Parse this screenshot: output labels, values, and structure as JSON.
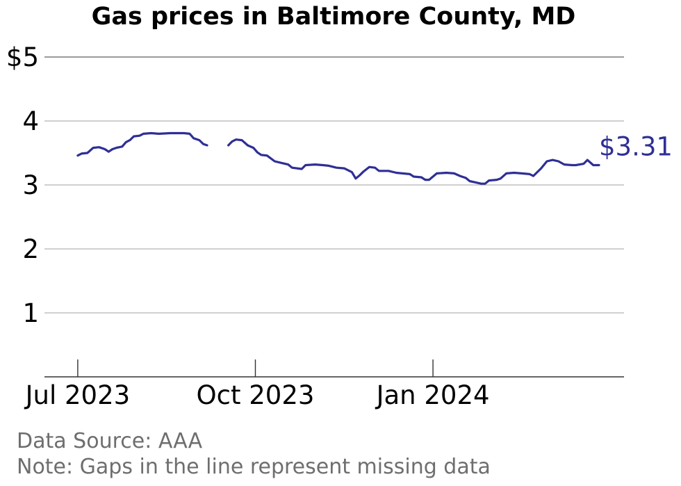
{
  "chart_data": {
    "type": "line",
    "title": "Gas prices in Baltimore County, MD",
    "xlabel": "",
    "ylabel": "",
    "x_range": [
      "2023-06-26",
      "2024-03-27"
    ],
    "ylim": [
      0,
      5
    ],
    "y_ticks": [
      {
        "value": 5,
        "label": "$5"
      },
      {
        "value": 4,
        "label": "4"
      },
      {
        "value": 3,
        "label": "3"
      },
      {
        "value": 2,
        "label": "2"
      },
      {
        "value": 1,
        "label": "1"
      }
    ],
    "x_ticks": [
      {
        "date": "2023-07-01",
        "label": "Jul 2023"
      },
      {
        "date": "2023-10-01",
        "label": "Oct 2023"
      },
      {
        "date": "2024-01-01",
        "label": "Jan 2024"
      }
    ],
    "grid": true,
    "line_color": "#2f2f96",
    "series": [
      {
        "name": "",
        "segments": [
          [
            [
              "2023-07-01",
              3.46
            ],
            [
              "2023-07-03",
              3.49
            ],
            [
              "2023-07-06",
              3.5
            ],
            [
              "2023-07-09",
              3.58
            ],
            [
              "2023-07-12",
              3.59
            ],
            [
              "2023-07-15",
              3.56
            ],
            [
              "2023-07-17",
              3.52
            ],
            [
              "2023-07-19",
              3.56
            ],
            [
              "2023-07-21",
              3.58
            ],
            [
              "2023-07-24",
              3.6
            ],
            [
              "2023-07-26",
              3.67
            ],
            [
              "2023-07-28",
              3.7
            ],
            [
              "2023-07-30",
              3.76
            ],
            [
              "2023-08-02",
              3.77
            ],
            [
              "2023-08-04",
              3.8
            ],
            [
              "2023-08-08",
              3.81
            ],
            [
              "2023-08-12",
              3.8
            ],
            [
              "2023-08-18",
              3.81
            ],
            [
              "2023-08-25",
              3.81
            ],
            [
              "2023-08-28",
              3.8
            ],
            [
              "2023-08-30",
              3.73
            ],
            [
              "2023-09-02",
              3.7
            ],
            [
              "2023-09-04",
              3.64
            ],
            [
              "2023-09-06",
              3.62
            ]
          ],
          [
            [
              "2023-09-17",
              3.62
            ],
            [
              "2023-09-19",
              3.68
            ],
            [
              "2023-09-21",
              3.71
            ],
            [
              "2023-09-24",
              3.7
            ],
            [
              "2023-09-27",
              3.62
            ],
            [
              "2023-09-30",
              3.58
            ],
            [
              "2023-10-02",
              3.51
            ],
            [
              "2023-10-04",
              3.47
            ],
            [
              "2023-10-07",
              3.46
            ],
            [
              "2023-10-11",
              3.37
            ],
            [
              "2023-10-15",
              3.34
            ],
            [
              "2023-10-18",
              3.32
            ],
            [
              "2023-10-20",
              3.27
            ],
            [
              "2023-10-25",
              3.25
            ],
            [
              "2023-10-27",
              3.31
            ],
            [
              "2023-11-01",
              3.32
            ],
            [
              "2023-11-05",
              3.31
            ],
            [
              "2023-11-08",
              3.3
            ],
            [
              "2023-11-12",
              3.27
            ],
            [
              "2023-11-16",
              3.26
            ],
            [
              "2023-11-20",
              3.2
            ],
            [
              "2023-11-22",
              3.1
            ],
            [
              "2023-11-24",
              3.15
            ],
            [
              "2023-11-26",
              3.21
            ],
            [
              "2023-11-29",
              3.28
            ],
            [
              "2023-12-02",
              3.27
            ],
            [
              "2023-12-04",
              3.22
            ],
            [
              "2023-12-09",
              3.22
            ],
            [
              "2023-12-13",
              3.19
            ],
            [
              "2023-12-20",
              3.17
            ],
            [
              "2023-12-22",
              3.13
            ],
            [
              "2023-12-26",
              3.12
            ],
            [
              "2023-12-28",
              3.08
            ],
            [
              "2023-12-30",
              3.08
            ],
            [
              "2024-01-03",
              3.18
            ],
            [
              "2024-01-08",
              3.19
            ],
            [
              "2024-01-12",
              3.18
            ],
            [
              "2024-01-15",
              3.14
            ],
            [
              "2024-01-18",
              3.11
            ],
            [
              "2024-01-20",
              3.06
            ],
            [
              "2024-01-23",
              3.04
            ],
            [
              "2024-01-26",
              3.02
            ],
            [
              "2024-01-28",
              3.02
            ],
            [
              "2024-01-30",
              3.07
            ],
            [
              "2024-02-03",
              3.08
            ],
            [
              "2024-02-05",
              3.1
            ],
            [
              "2024-02-08",
              3.18
            ],
            [
              "2024-02-12",
              3.19
            ],
            [
              "2024-02-16",
              3.18
            ],
            [
              "2024-02-20",
              3.17
            ],
            [
              "2024-02-22",
              3.14
            ],
            [
              "2024-02-24",
              3.2
            ],
            [
              "2024-02-26",
              3.26
            ],
            [
              "2024-02-29",
              3.37
            ],
            [
              "2024-03-03",
              3.39
            ],
            [
              "2024-03-06",
              3.37
            ],
            [
              "2024-03-09",
              3.32
            ],
            [
              "2024-03-13",
              3.31
            ],
            [
              "2024-03-15",
              3.31
            ],
            [
              "2024-03-19",
              3.33
            ],
            [
              "2024-03-21",
              3.39
            ],
            [
              "2024-03-24",
              3.31
            ],
            [
              "2024-03-27",
              3.31
            ]
          ]
        ]
      }
    ],
    "end_label": "$3.31"
  },
  "footer": {
    "source": "Data Source: AAA",
    "note": "Note: Gaps in the line represent missing data"
  }
}
